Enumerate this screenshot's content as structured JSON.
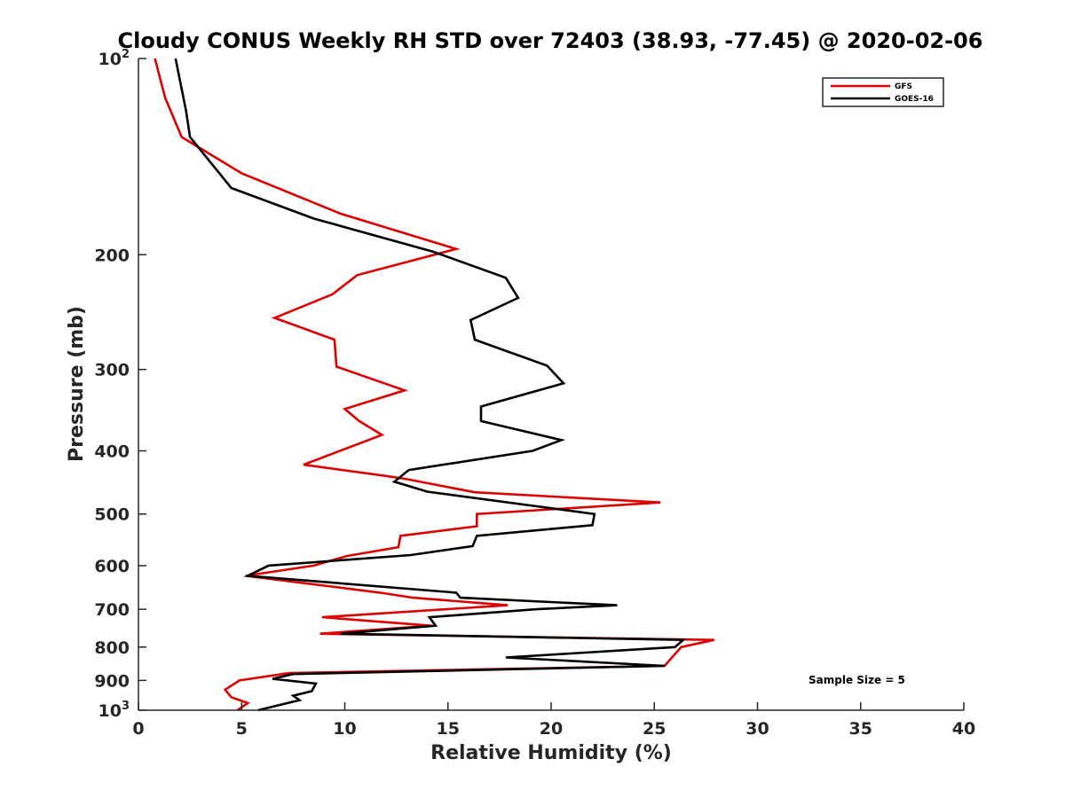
{
  "chart_data": {
    "type": "line",
    "title": "Cloudy CONUS Weekly RH STD over 72403 (38.93, -77.45) @ 2020-02-06",
    "xlabel": "Relative Humidity (%)",
    "ylabel": "Pressure (mb)",
    "xlim": [
      0,
      40
    ],
    "ylim": [
      100,
      1000
    ],
    "y_scale": "log",
    "y_reversed": true,
    "x_ticks": [
      "0",
      "5",
      "10",
      "15",
      "20",
      "25",
      "30",
      "35",
      "40"
    ],
    "y_ticks": [
      {
        "value": 100,
        "base": "10",
        "exp": "2"
      },
      {
        "value": 200,
        "label": "200"
      },
      {
        "value": 300,
        "label": "300"
      },
      {
        "value": 400,
        "label": "400"
      },
      {
        "value": 500,
        "label": "500"
      },
      {
        "value": 600,
        "label": "600"
      },
      {
        "value": 700,
        "label": "700"
      },
      {
        "value": 800,
        "label": "800"
      },
      {
        "value": 900,
        "label": "900"
      },
      {
        "value": 1000,
        "base": "10",
        "exp": "3"
      }
    ],
    "grid": false,
    "legend": "top-right",
    "annotation": "Sample Size = 5",
    "series": [
      {
        "name": "GFS",
        "color": "#dd0000",
        "points": [
          [
            0.8,
            100
          ],
          [
            1.3,
            115
          ],
          [
            2.1,
            132
          ],
          [
            5.0,
            150
          ],
          [
            9.8,
            173
          ],
          [
            15.4,
            196
          ],
          [
            10.6,
            215
          ],
          [
            9.4,
            230
          ],
          [
            6.6,
            250
          ],
          [
            9.5,
            270
          ],
          [
            9.6,
            297
          ],
          [
            12.9,
            323
          ],
          [
            10.0,
            345
          ],
          [
            10.7,
            360
          ],
          [
            11.8,
            378
          ],
          [
            8.0,
            420
          ],
          [
            12.0,
            437
          ],
          [
            13.0,
            442
          ],
          [
            16.3,
            463
          ],
          [
            25.3,
            480
          ],
          [
            16.4,
            500
          ],
          [
            16.4,
            522
          ],
          [
            12.7,
            540
          ],
          [
            12.6,
            562
          ],
          [
            10.1,
            580
          ],
          [
            8.5,
            600
          ],
          [
            5.2,
            622
          ],
          [
            11.7,
            660
          ],
          [
            13.3,
            672
          ],
          [
            17.9,
            690
          ],
          [
            8.9,
            720
          ],
          [
            14.2,
            742
          ],
          [
            8.8,
            763
          ],
          [
            27.9,
            780
          ],
          [
            26.3,
            800
          ],
          [
            25.5,
            855
          ],
          [
            7.3,
            877
          ],
          [
            4.9,
            900
          ],
          [
            4.2,
            930
          ],
          [
            4.5,
            955
          ],
          [
            5.3,
            975
          ],
          [
            4.8,
            1000
          ]
        ]
      },
      {
        "name": "GOES-16",
        "color": "#000000",
        "points": [
          [
            1.8,
            100
          ],
          [
            2.3,
            120
          ],
          [
            2.5,
            132
          ],
          [
            4.5,
            158
          ],
          [
            8.5,
            176
          ],
          [
            14.3,
            198
          ],
          [
            17.8,
            217
          ],
          [
            18.4,
            233
          ],
          [
            16.1,
            252
          ],
          [
            16.3,
            270
          ],
          [
            19.8,
            296
          ],
          [
            20.6,
            315
          ],
          [
            16.6,
            342
          ],
          [
            16.6,
            360
          ],
          [
            20.5,
            385
          ],
          [
            19.1,
            400
          ],
          [
            13.1,
            428
          ],
          [
            12.4,
            446
          ],
          [
            14.0,
            462
          ],
          [
            22.1,
            500
          ],
          [
            22.0,
            520
          ],
          [
            16.4,
            540
          ],
          [
            16.2,
            560
          ],
          [
            13.2,
            578
          ],
          [
            6.3,
            600
          ],
          [
            5.3,
            622
          ],
          [
            15.4,
            660
          ],
          [
            15.6,
            672
          ],
          [
            23.2,
            690
          ],
          [
            19.3,
            700
          ],
          [
            14.1,
            720
          ],
          [
            14.4,
            742
          ],
          [
            9.8,
            763
          ],
          [
            26.4,
            780
          ],
          [
            26.0,
            800
          ],
          [
            17.8,
            830
          ],
          [
            25.5,
            855
          ],
          [
            7.5,
            880
          ],
          [
            6.5,
            895
          ],
          [
            8.6,
            910
          ],
          [
            8.4,
            935
          ],
          [
            7.5,
            950
          ],
          [
            7.8,
            965
          ],
          [
            5.8,
            1000
          ]
        ]
      }
    ]
  }
}
